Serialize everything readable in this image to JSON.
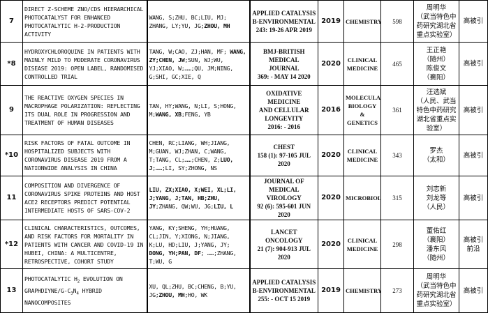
{
  "rows": [
    {
      "num": "7",
      "title": [
        {
          "t": "DIRECT Z-SCHEME ZNO/CDS HIERARCHICAL PHOTOCATALYST FOR ENHANCED PHOTOCATALYTIC H-2-PRODUCTION ACTIVITY"
        }
      ],
      "authors": [
        {
          "t": "WANG, S;ZHU, BC;LIU, MJ; ZHANG, LY;YU, JG;"
        },
        {
          "t": "ZHOU, MH",
          "b": true
        }
      ],
      "journal": [
        "APPLIED CATALYSIS",
        "B-ENVIRONMENTAL",
        "243: 19-26 APR 2019"
      ],
      "year": "2019",
      "field": "CHEMISTRY",
      "cites": "598",
      "cn": [
        "周明华",
        "（武当特色中药研究湖北省重点实验室）"
      ],
      "tag": [
        "高被引"
      ]
    },
    {
      "num": "*8",
      "title": [
        {
          "t": "HYDROXYCHLOROQUINE IN PATIENTS WITH MAINLY MILD TO MODERATE CORONAVIRUS DISEASE 2019: OPEN LABEL, RANDOMISED CONTROLLED TRIAL"
        }
      ],
      "authors": [
        {
          "t": "TANG, W;CAO, ZJ;HAN, MF; "
        },
        {
          "t": "WANG, ZY;CHEN, JW",
          "b": true
        },
        {
          "t": ";SUN, WJ;WU, YJ;XIAO, W;……;QU, JM;NING, G;SHI, GC;XIE, Q"
        }
      ],
      "journal": [
        "BMJ-BRITISH MEDICAL",
        "JOURNAL",
        "369: - MAY 14 2020"
      ],
      "year": "2020",
      "field": "CLINICAL MEDICINE",
      "cites": "465",
      "cn": [
        "王正艳",
        "（随州）",
        "陈俊文",
        "（襄阳）"
      ],
      "tag": [
        "高被引"
      ]
    },
    {
      "num": "9",
      "title": [
        {
          "t": "THE REACTIVE OXYGEN SPECIES IN MACROPHAGE POLARIZATION: REFLECTING ITS DUAL ROLE IN PROGRESSION AND TREATMENT OF HUMAN DISEASES"
        }
      ],
      "authors": [
        {
          "t": "TAN, HY;WANG, N;LI, S;HONG, M;"
        },
        {
          "t": "WANG, XB",
          "b": true
        },
        {
          "t": ";FENG, YB"
        }
      ],
      "journal": [
        "OXIDATIVE MEDICINE",
        "AND CELLULAR",
        "LONGEVITY",
        "2016: - 2016"
      ],
      "year": "2016",
      "field": "MOLECULAR BIOLOGY & GENETICS",
      "cites": "361",
      "cn": [
        "汪选斌",
        "（人民、武当特色中药研究湖北省重点实验室）"
      ],
      "tag": [
        "高被引"
      ]
    },
    {
      "num": "*10",
      "title": [
        {
          "t": "RISK FACTORS OF FATAL OUTCOME IN HOSPITALIZED SUBJECTS WITH CORONAVIRUS DISEASE 2019 FROM A NATIONWIDE ANALYSIS IN CHINA"
        }
      ],
      "authors": [
        {
          "t": "CHEN, RC;LIANG, WH;JIANG, M;GUAN, WJ;ZHAN, C;WANG, T;TANG, CL;……;CHEN, Z;"
        },
        {
          "t": "LUO, J",
          "b": true
        },
        {
          "t": ";……;LI, SY;ZHONG, NS"
        }
      ],
      "journal": [
        "CHEST",
        "158 (1): 97-105 JUL",
        "2020"
      ],
      "year": "2020",
      "field": "CLINICAL MEDICINE",
      "cites": "343",
      "cn": [
        "罗杰",
        "（太和）"
      ],
      "tag": [
        "高被引"
      ]
    },
    {
      "num": "11",
      "title": [
        {
          "t": "COMPOSITION AND DIVERGENCE OF CORONAVIRUS SPIKE PROTEINS AND HOST ACE2 RECEPTORS PREDICT POTENTIAL INTERMEDIATE HOSTS OF SARS-COV-2"
        }
      ],
      "authors": [
        {
          "t": "LIU, ZX;XIAO, X;WEI, XL;LI, J;YANG, J;TAN, HB;ZHU, JY",
          "b": true
        },
        {
          "t": ";ZHANG, QW;WU, JG;"
        },
        {
          "t": "LIU, L",
          "b": true
        }
      ],
      "journal": [
        "JOURNAL OF MEDICAL",
        "VIROLOGY",
        "92 (6): 595-601 JUN",
        "2020"
      ],
      "year": "2020",
      "field": "MICROBIOLOGY",
      "cites": "315",
      "cn": [
        "刘志新",
        "刘龙等",
        "（人民）"
      ],
      "tag": [
        "高被引"
      ]
    },
    {
      "num": "*12",
      "title": [
        {
          "t": "CLINICAL CHARACTERISTICS, OUTCOMES, AND RISK FACTORS FOR MORTALITY IN PATIENTS WITH CANCER AND COVID-19 IN HUBEI, CHINA: A MULTICENTRE, RETROSPECTIVE, COHORT STUDY"
        }
      ],
      "authors": [
        {
          "t": "YANG, KY;SHENG, YH;HUANG, CL;JIN, Y;XIONG, N;JIANG, K;LU, HD;LIU, J;YANG, JY; "
        },
        {
          "t": "DONG, YH;PAN, DF",
          "b": true
        },
        {
          "t": "; ……;ZHANG, T;WU, G"
        }
      ],
      "journal": [
        "LANCET ONCOLOGY",
        "21 (7): 904-913 JUL",
        "2020"
      ],
      "year": "2020",
      "field": "CLINICAL MEDICINE",
      "cites": "298",
      "cn": [
        "董佑红",
        "（襄阳）",
        "潘东风",
        "（随州）"
      ],
      "tag": [
        "高被引",
        "前沿"
      ]
    },
    {
      "num": "13",
      "title": [
        {
          "t": "PHOTOCATALYTIC H"
        },
        {
          "t": "2",
          "sub": true
        },
        {
          "t": " EVOLUTION ON GRAPHDIYNE/G-C"
        },
        {
          "t": "3",
          "sub": true
        },
        {
          "t": "N"
        },
        {
          "t": "4",
          "sub": true
        },
        {
          "t": " HYBRID NANOCOMPOSITES"
        }
      ],
      "authors": [
        {
          "t": "XU, QL;ZHU, BC;CHENG, B;YU, JG;"
        },
        {
          "t": "ZHOU, MH",
          "b": true
        },
        {
          "t": ";HO, WK"
        }
      ],
      "journal": [
        "APPLIED CATALYSIS",
        "B-ENVIRONMENTAL",
        "255: - OCT 15 2019"
      ],
      "year": "2019",
      "field": "CHEMISTRY",
      "cites": "273",
      "cn": [
        "周明华",
        "（武当特色中药研究湖北省重点实验室）"
      ],
      "tag": [
        "高被引"
      ]
    }
  ]
}
